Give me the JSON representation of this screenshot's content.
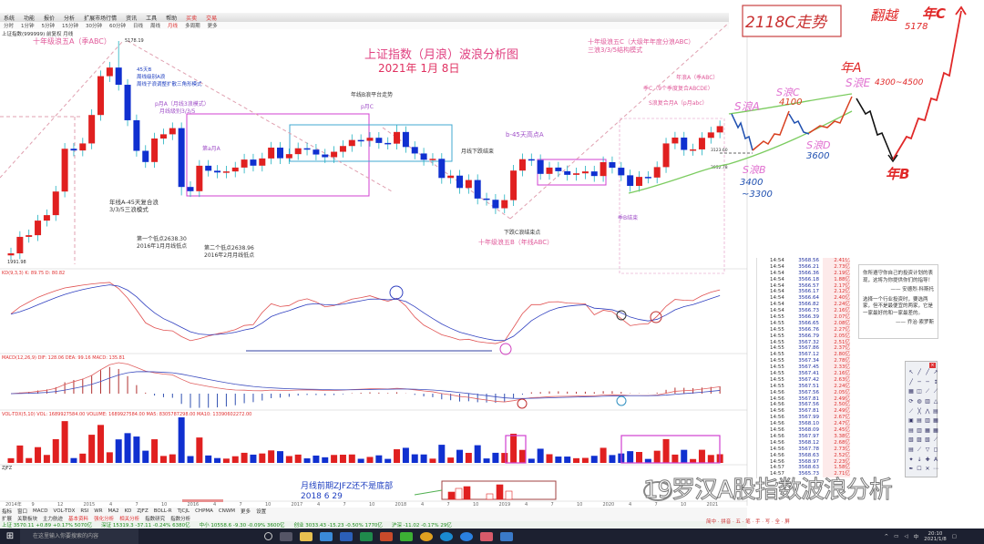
{
  "menubar": {
    "items": [
      "系统",
      "功能",
      "报价",
      "分析",
      "扩展市场行情",
      "资讯",
      "工具",
      "帮助"
    ],
    "highlight": [
      "买卖",
      "交易"
    ]
  },
  "toolbar": {
    "items": [
      "分时",
      "1分钟",
      "5分钟",
      "15分钟",
      "30分钟",
      "60分钟",
      "日线",
      "周线",
      "月线",
      "多周期",
      "更多"
    ],
    "active": "月线"
  },
  "stock_line": "上证指数(999999) 前复权 月线",
  "chart": {
    "title": "上证指数（月浪）波浪分析图",
    "date": "2021年 1月 8日",
    "start_low": "1991.98",
    "peak_label": "5178.19",
    "price_ticks": [
      "3123.60",
      "2952.78"
    ],
    "closes": [
      2048,
      2201,
      2217,
      2363,
      2420,
      2683,
      3234,
      3210,
      3310,
      3748,
      4441,
      4611,
      4277,
      3663,
      3205,
      3052,
      3382,
      3445,
      3539,
      2737,
      2687,
      3003,
      2938,
      2916,
      2929,
      2979,
      3085,
      3004,
      3100,
      3250,
      3103,
      3159,
      3241,
      3222,
      3154,
      3117,
      3192,
      3273,
      3360,
      3348,
      3393,
      3317,
      3307,
      3480,
      3259,
      3168,
      3082,
      3095,
      2847,
      2876,
      2725,
      2821,
      2602,
      2588,
      2494,
      2584,
      2940,
      3090,
      3078,
      2898,
      2979,
      2932,
      2886,
      2905,
      2929,
      2871,
      3050,
      2977,
      2880,
      2750,
      2860,
      2852,
      2985,
      3310,
      3396,
      3218,
      3225,
      3392,
      3473,
      3570
    ],
    "colors": {
      "up": "#e02020",
      "down": "#1030d0",
      "annotation": "#e05a9a",
      "box": "#d040d0",
      "channel": "#50c040"
    },
    "date_axis": [
      "2014年",
      "9",
      "12",
      "2015",
      "4",
      "7",
      "10",
      "2016",
      "4",
      "7",
      "10",
      "2017",
      "4",
      "7",
      "10",
      "2018",
      "4",
      "7",
      "10",
      "2019",
      "4",
      "7",
      "10",
      "2020",
      "4",
      "7",
      "10",
      "2021"
    ]
  },
  "annotations": [
    "十年级浪五A（季ABC）",
    "45天B",
    "周线级别A浪",
    "周线子浪调整扩散三角形模式",
    "p月A（月线3浪模式）",
    "月线级别3/3/5",
    "第a月A",
    "年线A-45天复合浪",
    "3/3/5三浪模式",
    "第一个低点2638.30",
    "2016年1月月线低点",
    "第二个低点2638.96",
    "2016年2月月线低点",
    "年线B浪平台走势",
    "p月C",
    "b-45天高点A",
    "月线下跌结束",
    "下跌C浪结束点",
    "十年级浪五B（年线ABC）",
    "十年级浪五C（大级年年度分浪ABC）",
    "三浪3/3/5结构模式",
    "年浪A（季ABC）",
    "季C（9个季度复合ABCDE）",
    "S浪复合月A（p月abc）",
    "季B结束",
    "月线前期ZJFZ还不是底部",
    "2018 6 29"
  ],
  "handwritten": {
    "title": "2118C走势",
    "cross": "翻越",
    "year_c": "年C",
    "year_c_target": "5178",
    "year_a": "年A",
    "s_e": "S浪E",
    "s_e_target": "4300~4500",
    "s_c": "S浪C",
    "s_c_target": "4100",
    "s_a": "S浪A",
    "s_d": "S浪D",
    "s_d_target": "3600",
    "s_b": "S浪B",
    "s_b_target_1": "3400",
    "s_b_target_2": "~3300",
    "year_b": "年B",
    "colors": {
      "red": "#e02828",
      "pink": "#e070d0",
      "blue": "#2050b0",
      "black": "#111111",
      "green": "#7ccc60"
    }
  },
  "panels": {
    "kdj": "KD(9,3,3) K: 89.75 D: 80.82",
    "macd": "MACD(12,26,9) DIF: 128.06 DEA: 99.16 MACD: 135.81",
    "vol": "VOL-TDX(5,10) VOL: 1689927584.00 VOLUME: 1689927584.00 MA5: 8305787298.00 MA10: 13390602272.00",
    "zjfz": "ZJFZ"
  },
  "quotes": [
    [
      "14:54",
      "3568.56",
      "2.41亿"
    ],
    [
      "14:54",
      "3566.21",
      "2.73亿"
    ],
    [
      "14:54",
      "3566.36",
      "2.19亿"
    ],
    [
      "14:54",
      "3566.18",
      "1.88亿"
    ],
    [
      "14:54",
      "3566.57",
      "2.17亿"
    ],
    [
      "14:54",
      "3566.17",
      "2.12亿"
    ],
    [
      "14:54",
      "3566.64",
      "2.40亿"
    ],
    [
      "14:54",
      "3566.82",
      "2.24亿"
    ],
    [
      "14:54",
      "3566.73",
      "2.16亿"
    ],
    [
      "14:55",
      "3566.39",
      "2.07亿"
    ],
    [
      "14:55",
      "3566.65",
      "2.08亿"
    ],
    [
      "14:55",
      "3566.76",
      "2.27亿"
    ],
    [
      "14:55",
      "3566.79",
      "2.05亿"
    ],
    [
      "14:55",
      "3567.32",
      "2.51亿"
    ],
    [
      "14:55",
      "3567.86",
      "2.37亿"
    ],
    [
      "14:55",
      "3567.12",
      "2.80亿"
    ],
    [
      "14:55",
      "3567.34",
      "2.78亿"
    ],
    [
      "14:55",
      "3567.45",
      "2.33亿"
    ],
    [
      "14:55",
      "3567.41",
      "2.16亿"
    ],
    [
      "14:55",
      "3567.42",
      "2.63亿"
    ],
    [
      "14:55",
      "3567.51",
      "2.24亿"
    ],
    [
      "14:56",
      "3567.56",
      "2.05亿"
    ],
    [
      "14:56",
      "3567.81",
      "2.49亿"
    ],
    [
      "14:56",
      "3567.56",
      "2.50亿"
    ],
    [
      "14:56",
      "3567.81",
      "2.49亿"
    ],
    [
      "14:56",
      "3567.99",
      "2.67亿"
    ],
    [
      "14:56",
      "3568.10",
      "2.47亿"
    ],
    [
      "14:56",
      "3568.09",
      "2.45亿"
    ],
    [
      "14:56",
      "3567.97",
      "3.38亿"
    ],
    [
      "14:56",
      "3568.12",
      "2.68亿"
    ],
    [
      "14:56",
      "3567.78",
      "2.73亿"
    ],
    [
      "14:56",
      "3568.63",
      "2.52亿"
    ],
    [
      "14:56",
      "3568.97",
      "2.23亿"
    ],
    [
      "14:57",
      "3568.63",
      "1.58亿"
    ],
    [
      "14:57",
      "3565.73",
      "2.71亿"
    ]
  ],
  "textbox": {
    "quote1": "你所遵守你自己的投资计划的表现，这将为你提供你们的指导！",
    "author1": "—— 安德烈·科斯托",
    "quote2": "选择一个行业投资时，要选两家，但不是最便宜的两家，它是一家最好的和一家最差的。",
    "author2": "—— 乔治·索罗斯"
  },
  "bottom": {
    "indicators": [
      "指标",
      "窗口",
      "MACD",
      "VOL-TDX",
      "RSI",
      "WR",
      "MA2",
      "KD",
      "ZJFZ",
      "BOLL-R",
      "TJCJL",
      "CHPMA",
      "CNWM",
      "更多",
      "设置"
    ],
    "tabs": [
      "扩展",
      "关联板块",
      "主力航迹",
      "基本资料",
      "强化分析",
      "相关分析",
      "指数研究",
      "指数分析"
    ],
    "ticker": [
      "上证 3570.11 +0.89 +0.17% 5070亿",
      "深证 15319.3 -37.11 -0.24% 6380亿",
      "中小 10558.6 -9.30 -0.09% 3600亿",
      "创业 3033.43 -15.23 -0.50% 1770亿",
      "沪深 -11.02 -0.17% 29亿"
    ],
    "ime": "简中 · 拼音 · 五 · 笔 · 手 · 写 · 全 · 屏"
  },
  "taskbar": {
    "search_placeholder": "在这里输入你要搜索的内容",
    "time": "20:10",
    "date": "2021/1/8",
    "lang": "中"
  },
  "watermark": "19罗汉A股指数波浪分析",
  "drawtools": [
    "↖",
    "╱",
    "╱",
    "↗",
    "╱",
    "─",
    "─",
    "↕",
    "▦",
    "◫",
    "⟋",
    "⟋",
    "⟳",
    "◍",
    "▥",
    "△",
    "⟋",
    "╳",
    "⋀",
    "▤",
    "▣",
    "▤",
    "▥",
    "▦",
    "▤",
    "▥",
    "▦",
    "▦",
    "▧",
    "▨",
    "▧",
    "⟋",
    "▤",
    "⟋",
    "▽",
    "◻",
    "✦",
    "↓",
    "✚",
    "A",
    "✒",
    "☐",
    "✕",
    "⋯"
  ]
}
